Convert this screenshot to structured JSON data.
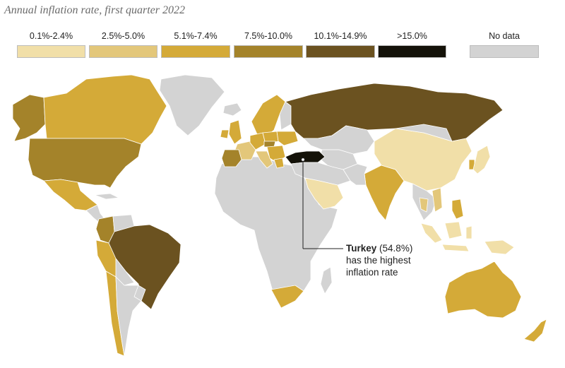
{
  "title": "Annual inflation rate, first quarter 2022",
  "legend": [
    {
      "label": "0.1%-2.4%",
      "color": "#f1dfa8"
    },
    {
      "label": "2.5%-5.0%",
      "color": "#e3c77a"
    },
    {
      "label": "5.1%-7.4%",
      "color": "#d4aa38"
    },
    {
      "label": "7.5%-10.0%",
      "color": "#a4832a"
    },
    {
      "label": "10.1%-14.9%",
      "color": "#6b5220"
    },
    {
      "label": ">15.0%",
      "color": "#141209"
    },
    {
      "label": "No data",
      "color": "#d3d3d3"
    }
  ],
  "annotation": {
    "country": "Turkey",
    "value": "(54.8%)",
    "line1": "has the highest",
    "line2": "inflation rate"
  },
  "colors": {
    "low": "#f1dfa8",
    "low_mid": "#e3c77a",
    "mid": "#d4aa38",
    "mid_high": "#a4832a",
    "high": "#6b5220",
    "very_high": "#141209",
    "no_data": "#d3d3d3",
    "border": "#ffffff"
  }
}
